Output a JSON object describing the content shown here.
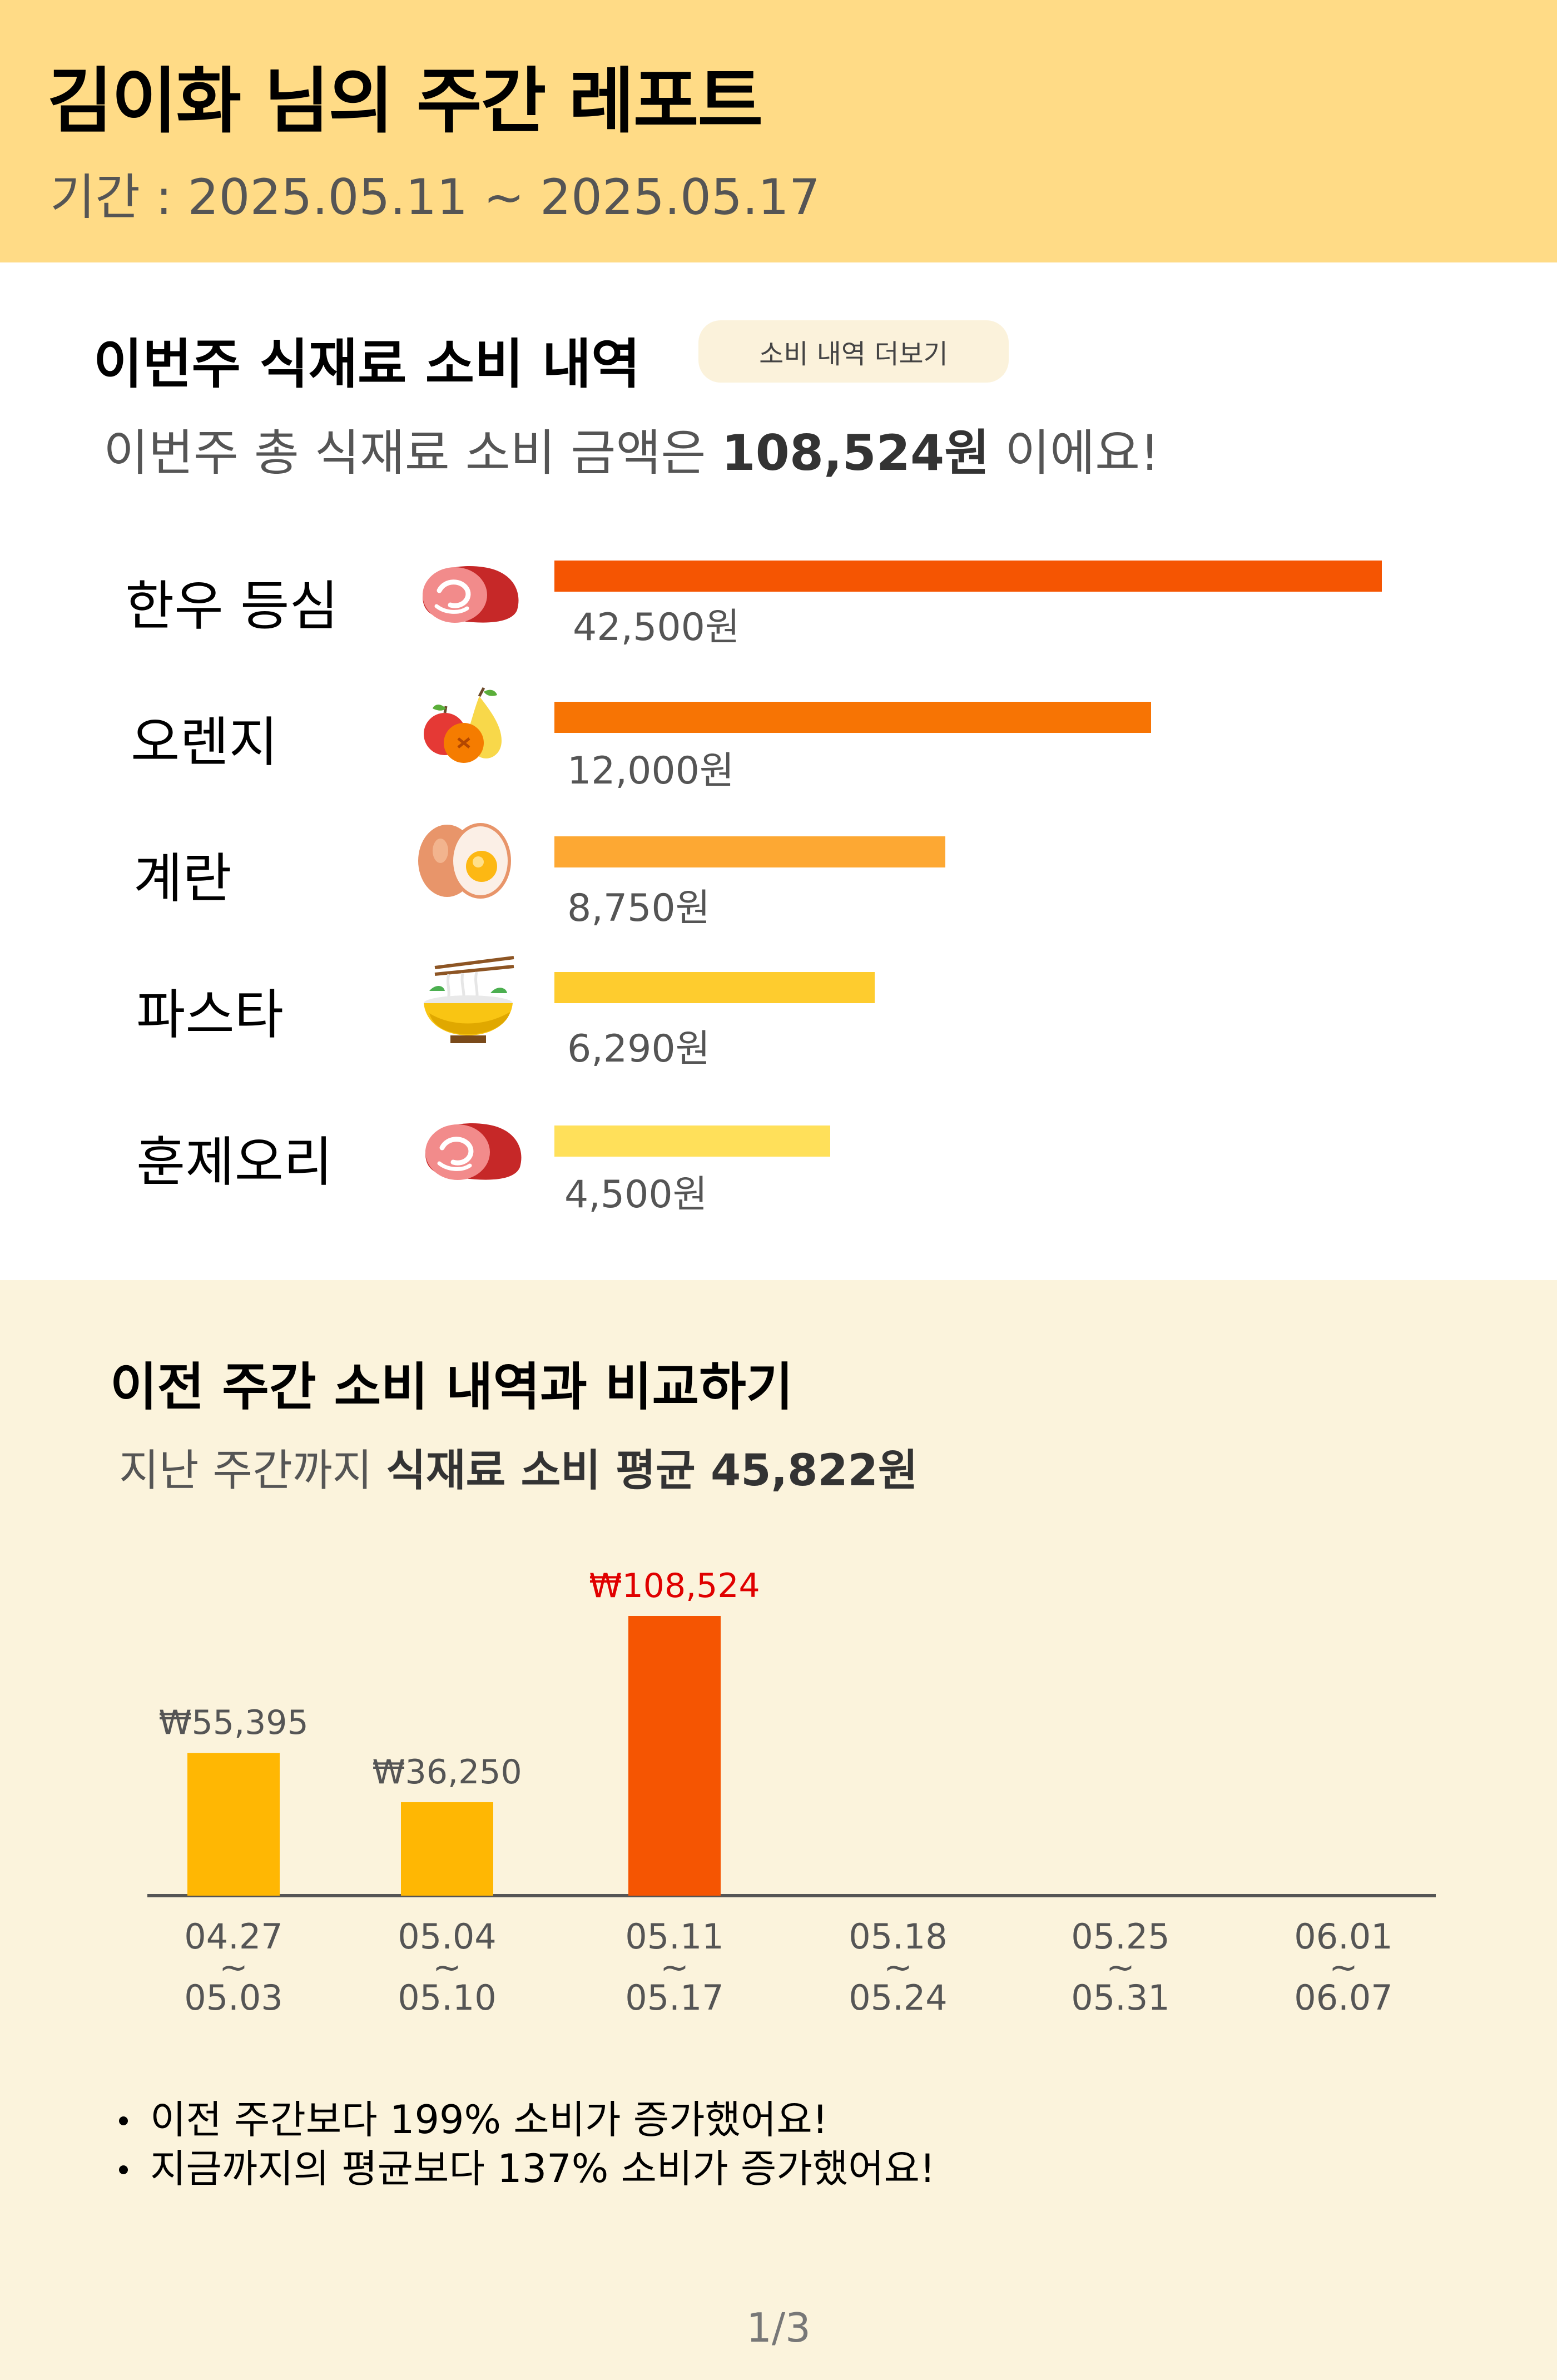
{
  "header": {
    "title": "김이화 님의 주간 레포트",
    "period": "기간 : 2025.05.11 ~ 2025.05.17"
  },
  "colors": {
    "header_bg": "#FFDB86",
    "section2_bg": "#FBF3DC",
    "bar_orange": "#F55502",
    "bar_yellow": "#FFB703",
    "highlight_red": "#E00000"
  },
  "consumption": {
    "title": "이번주 식재료 소비 내역",
    "more_button": "소비 내역 더보기",
    "summary_prefix": "이번주 총 식재료 소비 금액은 ",
    "summary_amount": "108,524원",
    "summary_suffix": " 이에요!",
    "items": [
      {
        "name": "한우 등심",
        "icon": "meat-icon",
        "amount": 42500,
        "amount_label": "42,500원",
        "color": "#F55502"
      },
      {
        "name": "오렌지",
        "icon": "fruit-icon",
        "amount": 12000,
        "amount_label": "12,000원",
        "color": "#F77404"
      },
      {
        "name": "계란",
        "icon": "egg-icon",
        "amount": 8750,
        "amount_label": "8,750원",
        "color": "#FDA833"
      },
      {
        "name": "파스타",
        "icon": "noodle-bowl-icon",
        "amount": 6290,
        "amount_label": "6,290원",
        "color": "#FECC2E"
      },
      {
        "name": "훈제오리",
        "icon": "meat-icon",
        "amount": 4500,
        "amount_label": "4,500원",
        "color": "#FFE05A"
      }
    ]
  },
  "comparison": {
    "title": "이전 주간 소비 내역과 비교하기",
    "avg_prefix": "지난 주간까지 ",
    "avg_bold": "식재료 소비 평균 45,822원",
    "bullets": [
      "이전 주간보다 199% 소비가 증가했어요!",
      "지금까지의 평균보다 137% 소비가 증가했어요!"
    ],
    "page_indicator": "1/3"
  },
  "chart_data": {
    "type": "bar",
    "categories": [
      {
        "start": "04.27",
        "sep": "~",
        "end": "05.03"
      },
      {
        "start": "05.04",
        "sep": "~",
        "end": "05.10"
      },
      {
        "start": "05.11",
        "sep": "~",
        "end": "05.17"
      },
      {
        "start": "05.18",
        "sep": "~",
        "end": "05.24"
      },
      {
        "start": "05.25",
        "sep": "~",
        "end": "05.31"
      },
      {
        "start": "06.01",
        "sep": "~",
        "end": "06.07"
      }
    ],
    "values": [
      55395,
      36250,
      108524,
      null,
      null,
      null
    ],
    "value_labels": [
      "₩55,395",
      "₩36,250",
      "₩108,524",
      "",
      "",
      ""
    ],
    "highlight_index": 2,
    "title": "",
    "xlabel": "",
    "ylabel": ""
  }
}
